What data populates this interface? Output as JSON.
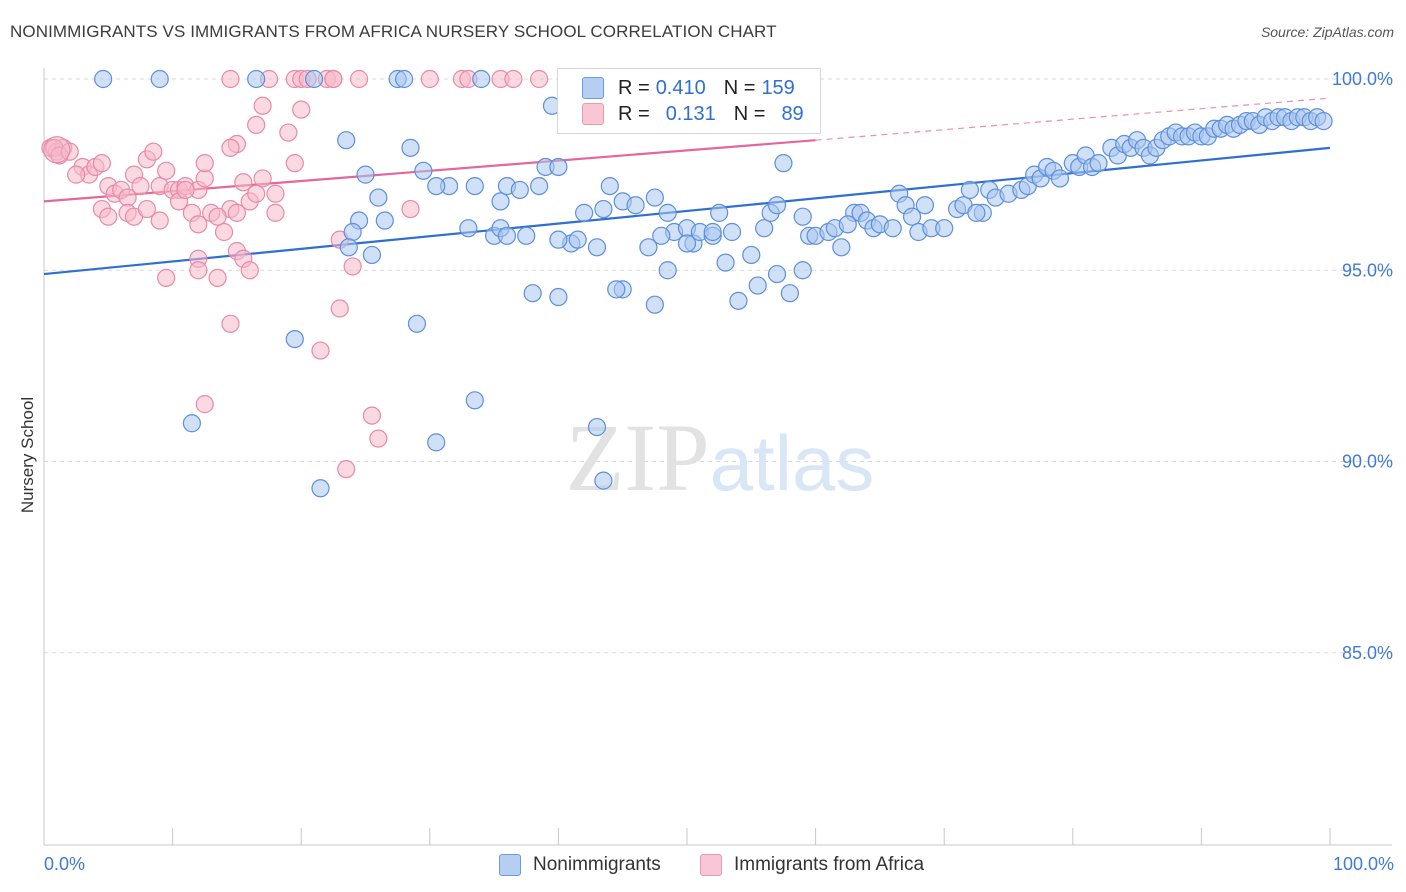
{
  "header": {
    "title": "NONIMMIGRANTS VS IMMIGRANTS FROM AFRICA NURSERY SCHOOL CORRELATION CHART",
    "source": "Source: ZipAtlas.com"
  },
  "watermark": {
    "zip": "ZIP",
    "atlas": "atlas"
  },
  "legend": {
    "rows": [
      {
        "r_label": "R =",
        "r_value": "0.410",
        "n_label": "N =",
        "n_value": "159"
      },
      {
        "r_label": "R =",
        "r_value": "0.131",
        "n_label": "N =",
        "n_value": "89"
      }
    ],
    "bottom": [
      "Nonimmigrants",
      "Immigrants from Africa"
    ]
  },
  "colors": {
    "blue_fill": "#a9c6ef",
    "blue_stroke": "#5d8fdc",
    "blue_line": "#2e6fd0",
    "pink_fill": "#f5b9cb",
    "pink_stroke": "#e889a7",
    "pink_line": "#e5679a",
    "tick_text": "#3f7bd4",
    "grid": "#d9d9d9"
  },
  "chart_data": {
    "type": "scatter",
    "title": "NONIMMIGRANTS VS IMMIGRANTS FROM AFRICA NURSERY SCHOOL CORRELATION CHART",
    "ylabel": "Nursery School",
    "xlabel": "",
    "x_tick_labels": [
      "0.0%",
      "100.0%"
    ],
    "y_tick_labels": [
      "100.0%",
      "95.0%",
      "90.0%",
      "85.0%"
    ],
    "y_ticks": [
      100,
      95,
      90,
      85
    ],
    "xlim": [
      0,
      100
    ],
    "ylim": [
      80.5,
      101
    ],
    "grid": true,
    "legend_position": "top-center",
    "series": [
      {
        "name": "Nonimmigrants",
        "stats": {
          "R": 0.41,
          "N": 159
        },
        "trend": {
          "x0": 0,
          "y0": 94.9,
          "x1": 100,
          "y1": 98.2
        },
        "points": [
          [
            4.6,
            100
          ],
          [
            9,
            100
          ],
          [
            16.5,
            100
          ],
          [
            21,
            100
          ],
          [
            27.5,
            100
          ],
          [
            28,
            100
          ],
          [
            34,
            100
          ],
          [
            39.5,
            99.3
          ],
          [
            23.5,
            98.4
          ],
          [
            28.5,
            98.2
          ],
          [
            29.5,
            97.6
          ],
          [
            31.5,
            97.2
          ],
          [
            25,
            97.5
          ],
          [
            26,
            96.9
          ],
          [
            24.5,
            96.3
          ],
          [
            26.5,
            96.3
          ],
          [
            24,
            96
          ],
          [
            23.7,
            95.6
          ],
          [
            25.5,
            95.4
          ],
          [
            33,
            96.1
          ],
          [
            35,
            95.9
          ],
          [
            35.5,
            96.1
          ],
          [
            37.5,
            95.9
          ],
          [
            35.5,
            96.8
          ],
          [
            36,
            97.2
          ],
          [
            37,
            97.1
          ],
          [
            38.5,
            97.2
          ],
          [
            39,
            97.7
          ],
          [
            40,
            97.7
          ],
          [
            42,
            96.5
          ],
          [
            41,
            95.7
          ],
          [
            41.5,
            95.8
          ],
          [
            43,
            95.6
          ],
          [
            45,
            96.8
          ],
          [
            46,
            96.7
          ],
          [
            47.5,
            96.9
          ],
          [
            48.5,
            96.5
          ],
          [
            49,
            96
          ],
          [
            48,
            95.9
          ],
          [
            50,
            96.1
          ],
          [
            50.5,
            95.7
          ],
          [
            51,
            96
          ],
          [
            52,
            95.9
          ],
          [
            52.5,
            96.5
          ],
          [
            53.5,
            96
          ],
          [
            53,
            95.2
          ],
          [
            55,
            95.4
          ],
          [
            56,
            96.1
          ],
          [
            56.5,
            96.5
          ],
          [
            57,
            96.7
          ],
          [
            59,
            96.4
          ],
          [
            59.5,
            95.9
          ],
          [
            60,
            95.9
          ],
          [
            61,
            96
          ],
          [
            61.5,
            96.1
          ],
          [
            62,
            95.6
          ],
          [
            63,
            96.5
          ],
          [
            63.5,
            96.5
          ],
          [
            64,
            96.3
          ],
          [
            64.5,
            96.1
          ],
          [
            65,
            96.2
          ],
          [
            66,
            96.1
          ],
          [
            66.5,
            97
          ],
          [
            67,
            96.7
          ],
          [
            67.5,
            96.4
          ],
          [
            68,
            96
          ],
          [
            68.5,
            96.7
          ],
          [
            69,
            96.1
          ],
          [
            70,
            96.1
          ],
          [
            71,
            96.6
          ],
          [
            71.5,
            96.7
          ],
          [
            72,
            97.1
          ],
          [
            73,
            96.5
          ],
          [
            73.5,
            97.1
          ],
          [
            74,
            96.9
          ],
          [
            75,
            97
          ],
          [
            76,
            97.1
          ],
          [
            76.5,
            97.2
          ],
          [
            77,
            97.5
          ],
          [
            77.5,
            97.4
          ],
          [
            78,
            97.7
          ],
          [
            78.5,
            97.6
          ],
          [
            79,
            97.4
          ],
          [
            80,
            97.8
          ],
          [
            80.5,
            97.7
          ],
          [
            81,
            98
          ],
          [
            81.5,
            97.7
          ],
          [
            82,
            97.8
          ],
          [
            83,
            98.2
          ],
          [
            83.5,
            98
          ],
          [
            84,
            98.3
          ],
          [
            84.5,
            98.2
          ],
          [
            85,
            98.4
          ],
          [
            85.5,
            98.2
          ],
          [
            86,
            98
          ],
          [
            86.5,
            98.2
          ],
          [
            87,
            98.4
          ],
          [
            87.5,
            98.5
          ],
          [
            88,
            98.6
          ],
          [
            88.5,
            98.5
          ],
          [
            89,
            98.5
          ],
          [
            89.5,
            98.6
          ],
          [
            90,
            98.5
          ],
          [
            90.5,
            98.5
          ],
          [
            91,
            98.7
          ],
          [
            91.5,
            98.7
          ],
          [
            92,
            98.8
          ],
          [
            92.5,
            98.7
          ],
          [
            93,
            98.8
          ],
          [
            93.5,
            98.9
          ],
          [
            94,
            98.9
          ],
          [
            94.5,
            98.8
          ],
          [
            95,
            99
          ],
          [
            95.5,
            98.9
          ],
          [
            96,
            99
          ],
          [
            96.5,
            99
          ],
          [
            97,
            98.9
          ],
          [
            97.5,
            99
          ],
          [
            98,
            99
          ],
          [
            98.5,
            98.9
          ],
          [
            99,
            99
          ],
          [
            99.5,
            98.9
          ],
          [
            57.5,
            97.8
          ],
          [
            44,
            97.2
          ],
          [
            30.5,
            97.2
          ],
          [
            33.5,
            97.2
          ],
          [
            43.5,
            96.6
          ],
          [
            47,
            95.6
          ],
          [
            45,
            94.5
          ],
          [
            44.5,
            94.5
          ],
          [
            38,
            94.4
          ],
          [
            40,
            94.3
          ],
          [
            47.5,
            94.1
          ],
          [
            54,
            94.2
          ],
          [
            55.5,
            94.6
          ],
          [
            58,
            94.4
          ],
          [
            57,
            94.9
          ],
          [
            59,
            95
          ],
          [
            48.5,
            95
          ],
          [
            29,
            93.6
          ],
          [
            19.5,
            93.2
          ],
          [
            11.5,
            91
          ],
          [
            33.5,
            91.6
          ],
          [
            43,
            90.9
          ],
          [
            30.5,
            90.5
          ],
          [
            43.5,
            89.5
          ],
          [
            21.5,
            89.3
          ],
          [
            40,
            95.8
          ],
          [
            36,
            95.9
          ],
          [
            50,
            95.7
          ],
          [
            52,
            96
          ],
          [
            62.5,
            96.2
          ],
          [
            72.5,
            96.5
          ]
        ]
      },
      {
        "name": "Immigrants from Africa",
        "stats": {
          "R": 0.131,
          "N": 89
        },
        "trend": {
          "x0": 0,
          "y0": 96.8,
          "x1": 60,
          "y1": 98.4
        },
        "trend_dashed": {
          "x0": 60,
          "y0": 98.4,
          "x1": 100,
          "y1": 99.5
        },
        "points": [
          [
            0.5,
            98.2
          ],
          [
            1,
            98.1
          ],
          [
            1.5,
            98.2
          ],
          [
            0.8,
            98.2
          ],
          [
            1.2,
            98
          ],
          [
            2,
            98.1
          ],
          [
            3,
            97.7
          ],
          [
            3.5,
            97.5
          ],
          [
            4,
            97.7
          ],
          [
            4.5,
            97.8
          ],
          [
            2.5,
            97.5
          ],
          [
            5,
            97.2
          ],
          [
            5.5,
            97
          ],
          [
            6,
            97.1
          ],
          [
            6.5,
            96.9
          ],
          [
            7,
            97.5
          ],
          [
            7.5,
            97.2
          ],
          [
            8,
            97.9
          ],
          [
            8.5,
            98.1
          ],
          [
            9,
            97.2
          ],
          [
            9.5,
            97.6
          ],
          [
            10,
            97.1
          ],
          [
            10.5,
            97.1
          ],
          [
            11,
            97.2
          ],
          [
            11.5,
            96.5
          ],
          [
            12,
            97.1
          ],
          [
            12.5,
            97.4
          ],
          [
            13,
            96.5
          ],
          [
            14,
            96
          ],
          [
            14.5,
            96.6
          ],
          [
            15,
            96.5
          ],
          [
            15.5,
            97.3
          ],
          [
            16,
            96.8
          ],
          [
            16.5,
            97
          ],
          [
            17,
            97.4
          ],
          [
            18,
            96.5
          ],
          [
            19,
            98.6
          ],
          [
            20,
            99.2
          ],
          [
            19.5,
            97.8
          ],
          [
            4.5,
            96.6
          ],
          [
            5,
            96.4
          ],
          [
            6.5,
            96.5
          ],
          [
            7,
            96.4
          ],
          [
            8,
            96.6
          ],
          [
            9,
            96.3
          ],
          [
            10.5,
            96.8
          ],
          [
            11,
            97.1
          ],
          [
            12,
            96.2
          ],
          [
            13.5,
            96.4
          ],
          [
            15,
            95.5
          ],
          [
            15.5,
            95.3
          ],
          [
            16,
            95
          ],
          [
            12,
            95.3
          ],
          [
            12,
            95
          ],
          [
            9.5,
            94.8
          ],
          [
            13.5,
            94.8
          ],
          [
            23,
            95.8
          ],
          [
            24,
            95.1
          ],
          [
            23,
            94
          ],
          [
            14.5,
            93.6
          ],
          [
            21.5,
            92.9
          ],
          [
            12.5,
            91.5
          ],
          [
            25.5,
            91.2
          ],
          [
            26,
            90.6
          ],
          [
            23.5,
            89.8
          ],
          [
            14.5,
            100
          ],
          [
            17.5,
            100
          ],
          [
            19.5,
            100
          ],
          [
            20,
            100
          ],
          [
            20.5,
            100
          ],
          [
            22,
            100
          ],
          [
            22.5,
            100
          ],
          [
            24.5,
            100
          ],
          [
            30,
            100
          ],
          [
            32.5,
            100
          ],
          [
            33,
            100
          ],
          [
            35.5,
            100
          ],
          [
            38.5,
            100
          ],
          [
            45.5,
            100
          ],
          [
            57.5,
            100
          ],
          [
            15,
            98.3
          ],
          [
            16.5,
            98.8
          ],
          [
            17,
            99.3
          ],
          [
            22.5,
            100
          ],
          [
            36.5,
            100
          ],
          [
            28.5,
            96.6
          ],
          [
            18,
            97
          ],
          [
            12.5,
            97.8
          ],
          [
            14.5,
            98.2
          ]
        ]
      }
    ]
  }
}
